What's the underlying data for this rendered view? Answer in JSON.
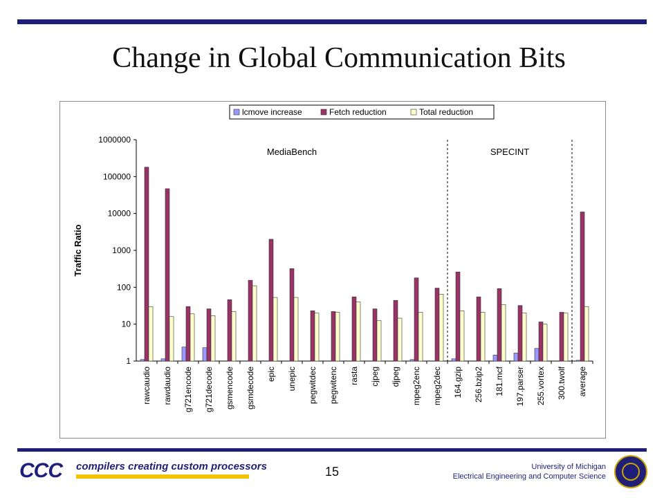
{
  "slide": {
    "title": "Change in Global Communication Bits",
    "page_number": "15",
    "logo_mark": "CCC",
    "logo_text": "compilers creating custom processors",
    "affiliation_line1": "University of Michigan",
    "affiliation_line2": "Electrical Engineering and Computer Science"
  },
  "colors": {
    "rule": "#1f1f7a",
    "lcmove": "#9999ff",
    "fetch": "#993366",
    "total": "#ffffcc"
  },
  "chart_data": {
    "type": "bar",
    "ylabel": "Traffic Ratio",
    "yscale": "log",
    "ylim": [
      1,
      1000000
    ],
    "yticks": [
      "1",
      "10",
      "100",
      "1000",
      "10000",
      "100000",
      "1000000"
    ],
    "legend_position": "top",
    "regions": [
      {
        "label": "MediaBench",
        "from": 0,
        "to": 14
      },
      {
        "label": "SPECINT",
        "from": 15,
        "to": 20
      }
    ],
    "categories": [
      "rawcaudio",
      "rawdaudio",
      "g721encode",
      "g721decode",
      "gsmencode",
      "gsmdecode",
      "epic",
      "unepic",
      "pegwitdec",
      "pegwitenc",
      "rasta",
      "cjpeg",
      "djpeg",
      "mpeg2enc",
      "mpeg2dec",
      "164.gzip",
      "256.bzip2",
      "181.mcf",
      "197.parser",
      "255.vortex",
      "300.twolf",
      "average"
    ],
    "series": [
      {
        "name": "lcmove increase",
        "values": [
          1.1,
          1.15,
          2.4,
          2.3,
          1,
          1,
          1,
          1,
          1,
          1,
          1,
          1,
          1,
          1.1,
          1,
          1.15,
          1,
          1.45,
          1.65,
          2.2,
          1,
          1.05
        ]
      },
      {
        "name": "Fetch reduction",
        "values": [
          180000,
          47000,
          30,
          26,
          46,
          155,
          2000,
          320,
          23,
          22,
          55,
          26,
          44,
          180,
          95,
          260,
          55,
          92,
          32,
          11.5,
          21,
          11000
        ]
      },
      {
        "name": "Total reduction",
        "values": [
          30,
          16,
          19,
          17,
          22,
          110,
          53,
          53,
          20,
          21,
          40,
          12.5,
          14.5,
          21,
          65,
          23,
          21,
          34,
          20,
          10,
          20,
          30
        ]
      }
    ]
  }
}
